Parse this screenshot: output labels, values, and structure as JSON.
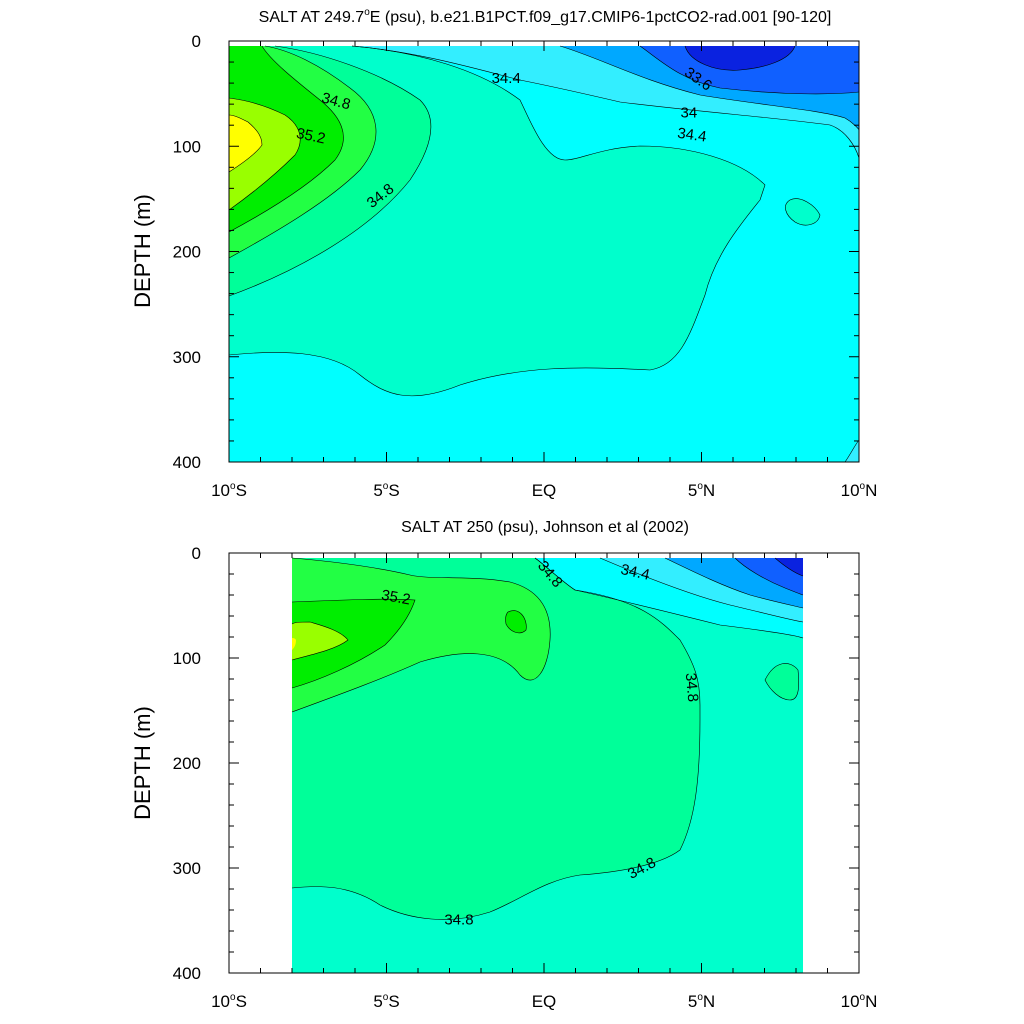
{
  "colors": {
    "s33_2": "#0a22e0",
    "s33_6": "#1060ff",
    "s34_0": "#00a8ff",
    "s34_4": "#33eeff",
    "s34_6": "#00ffff",
    "s34_8": "#00ffcc",
    "s35_0": "#00ff99",
    "s35_2": "#22ff44",
    "s35_4": "#00ee00",
    "s35_6": "#99ff00",
    "s35_8": "#ffff00",
    "missing": "#ffffff"
  },
  "chart_data": [
    {
      "type": "contour",
      "title_prefix": "SALT AT 249.7",
      "title_sup": "o",
      "title_suffix": "E (psu), b.e21.B1PCT.f09_g17.CMIP6-1pctCO2-rad.001 [90-120]",
      "xlabel": "",
      "ylabel": "DEPTH (m)",
      "xlim": [
        -10,
        10
      ],
      "ylim": [
        0,
        400
      ],
      "y_reversed": true,
      "x_ticks": [
        {
          "value": -10,
          "pre": "10",
          "sup": "o",
          "post": "S"
        },
        {
          "value": -5,
          "pre": "5",
          "sup": "o",
          "post": "S"
        },
        {
          "value": 0,
          "pre": "EQ",
          "sup": "",
          "post": ""
        },
        {
          "value": 5,
          "pre": "5",
          "sup": "o",
          "post": "N"
        },
        {
          "value": 10,
          "pre": "10",
          "sup": "o",
          "post": "N"
        }
      ],
      "y_ticks": [
        "0",
        "100",
        "200",
        "300",
        "400"
      ],
      "contour_labels": [
        {
          "text": "34.4",
          "x": -1.2,
          "y": 35,
          "angle": 0
        },
        {
          "text": "33.6",
          "x": 4.9,
          "y": 36,
          "angle": 35
        },
        {
          "text": "34",
          "x": 4.6,
          "y": 68,
          "angle": 0
        },
        {
          "text": "34.4",
          "x": 4.7,
          "y": 89,
          "angle": 8
        },
        {
          "text": "34.8",
          "x": -6.6,
          "y": 57,
          "angle": 15
        },
        {
          "text": "35.2",
          "x": -7.4,
          "y": 90,
          "angle": 12
        },
        {
          "text": "34.8",
          "x": -5.2,
          "y": 147,
          "angle": -38
        }
      ]
    },
    {
      "type": "contour",
      "title": "SALT AT 250 (psu), Johnson et al (2002)",
      "xlabel": "",
      "ylabel": "DEPTH (m)",
      "xlim": [
        -10,
        10
      ],
      "ylim": [
        0,
        400
      ],
      "y_reversed": true,
      "data_extent_x": [
        -8,
        8.2
      ],
      "x_ticks": [
        {
          "value": -10,
          "pre": "10",
          "sup": "o",
          "post": "S"
        },
        {
          "value": -5,
          "pre": "5",
          "sup": "o",
          "post": "S"
        },
        {
          "value": 0,
          "pre": "EQ",
          "sup": "",
          "post": ""
        },
        {
          "value": 5,
          "pre": "5",
          "sup": "o",
          "post": "N"
        },
        {
          "value": 10,
          "pre": "10",
          "sup": "o",
          "post": "N"
        }
      ],
      "y_ticks": [
        "0",
        "100",
        "200",
        "300",
        "400"
      ],
      "contour_labels": [
        {
          "text": "34.8",
          "x": 0.2,
          "y": 20,
          "angle": 50
        },
        {
          "text": "34.4",
          "x": 2.9,
          "y": 18,
          "angle": 12
        },
        {
          "text": "35.2",
          "x": -4.7,
          "y": 42,
          "angle": 10
        },
        {
          "text": "34.8",
          "x": 4.7,
          "y": 128,
          "angle": 85
        },
        {
          "text": "34.8",
          "x": 3.1,
          "y": 300,
          "angle": -28
        },
        {
          "text": "34.8",
          "x": -2.7,
          "y": 349,
          "angle": 0
        }
      ]
    }
  ]
}
